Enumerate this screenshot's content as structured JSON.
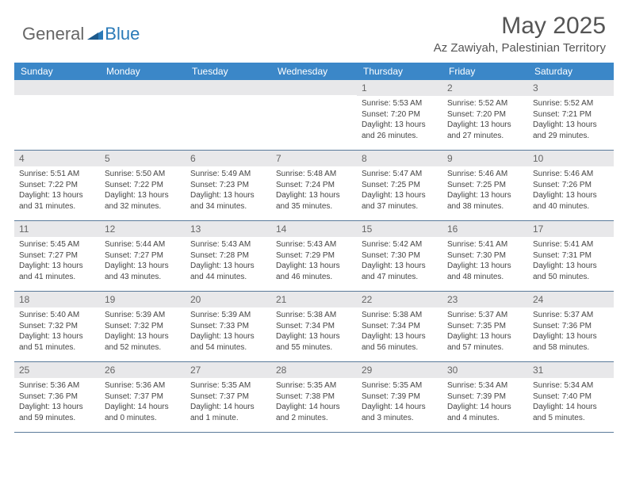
{
  "brand": {
    "general": "General",
    "blue": "Blue"
  },
  "title": "May 2025",
  "location": "Az Zawiyah, Palestinian Territory",
  "colors": {
    "header_bg": "#3b87c8",
    "header_fg": "#ffffff",
    "daynum_bg": "#e8e8ea",
    "border": "#5a7a9a",
    "text": "#444444",
    "brand_gray": "#666666",
    "brand_blue": "#2a7ab8"
  },
  "day_headers": [
    "Sunday",
    "Monday",
    "Tuesday",
    "Wednesday",
    "Thursday",
    "Friday",
    "Saturday"
  ],
  "weeks": [
    [
      {
        "n": "",
        "sr": "",
        "ss": "",
        "dl": ""
      },
      {
        "n": "",
        "sr": "",
        "ss": "",
        "dl": ""
      },
      {
        "n": "",
        "sr": "",
        "ss": "",
        "dl": ""
      },
      {
        "n": "",
        "sr": "",
        "ss": "",
        "dl": ""
      },
      {
        "n": "1",
        "sr": "Sunrise: 5:53 AM",
        "ss": "Sunset: 7:20 PM",
        "dl": "Daylight: 13 hours and 26 minutes."
      },
      {
        "n": "2",
        "sr": "Sunrise: 5:52 AM",
        "ss": "Sunset: 7:20 PM",
        "dl": "Daylight: 13 hours and 27 minutes."
      },
      {
        "n": "3",
        "sr": "Sunrise: 5:52 AM",
        "ss": "Sunset: 7:21 PM",
        "dl": "Daylight: 13 hours and 29 minutes."
      }
    ],
    [
      {
        "n": "4",
        "sr": "Sunrise: 5:51 AM",
        "ss": "Sunset: 7:22 PM",
        "dl": "Daylight: 13 hours and 31 minutes."
      },
      {
        "n": "5",
        "sr": "Sunrise: 5:50 AM",
        "ss": "Sunset: 7:22 PM",
        "dl": "Daylight: 13 hours and 32 minutes."
      },
      {
        "n": "6",
        "sr": "Sunrise: 5:49 AM",
        "ss": "Sunset: 7:23 PM",
        "dl": "Daylight: 13 hours and 34 minutes."
      },
      {
        "n": "7",
        "sr": "Sunrise: 5:48 AM",
        "ss": "Sunset: 7:24 PM",
        "dl": "Daylight: 13 hours and 35 minutes."
      },
      {
        "n": "8",
        "sr": "Sunrise: 5:47 AM",
        "ss": "Sunset: 7:25 PM",
        "dl": "Daylight: 13 hours and 37 minutes."
      },
      {
        "n": "9",
        "sr": "Sunrise: 5:46 AM",
        "ss": "Sunset: 7:25 PM",
        "dl": "Daylight: 13 hours and 38 minutes."
      },
      {
        "n": "10",
        "sr": "Sunrise: 5:46 AM",
        "ss": "Sunset: 7:26 PM",
        "dl": "Daylight: 13 hours and 40 minutes."
      }
    ],
    [
      {
        "n": "11",
        "sr": "Sunrise: 5:45 AM",
        "ss": "Sunset: 7:27 PM",
        "dl": "Daylight: 13 hours and 41 minutes."
      },
      {
        "n": "12",
        "sr": "Sunrise: 5:44 AM",
        "ss": "Sunset: 7:27 PM",
        "dl": "Daylight: 13 hours and 43 minutes."
      },
      {
        "n": "13",
        "sr": "Sunrise: 5:43 AM",
        "ss": "Sunset: 7:28 PM",
        "dl": "Daylight: 13 hours and 44 minutes."
      },
      {
        "n": "14",
        "sr": "Sunrise: 5:43 AM",
        "ss": "Sunset: 7:29 PM",
        "dl": "Daylight: 13 hours and 46 minutes."
      },
      {
        "n": "15",
        "sr": "Sunrise: 5:42 AM",
        "ss": "Sunset: 7:30 PM",
        "dl": "Daylight: 13 hours and 47 minutes."
      },
      {
        "n": "16",
        "sr": "Sunrise: 5:41 AM",
        "ss": "Sunset: 7:30 PM",
        "dl": "Daylight: 13 hours and 48 minutes."
      },
      {
        "n": "17",
        "sr": "Sunrise: 5:41 AM",
        "ss": "Sunset: 7:31 PM",
        "dl": "Daylight: 13 hours and 50 minutes."
      }
    ],
    [
      {
        "n": "18",
        "sr": "Sunrise: 5:40 AM",
        "ss": "Sunset: 7:32 PM",
        "dl": "Daylight: 13 hours and 51 minutes."
      },
      {
        "n": "19",
        "sr": "Sunrise: 5:39 AM",
        "ss": "Sunset: 7:32 PM",
        "dl": "Daylight: 13 hours and 52 minutes."
      },
      {
        "n": "20",
        "sr": "Sunrise: 5:39 AM",
        "ss": "Sunset: 7:33 PM",
        "dl": "Daylight: 13 hours and 54 minutes."
      },
      {
        "n": "21",
        "sr": "Sunrise: 5:38 AM",
        "ss": "Sunset: 7:34 PM",
        "dl": "Daylight: 13 hours and 55 minutes."
      },
      {
        "n": "22",
        "sr": "Sunrise: 5:38 AM",
        "ss": "Sunset: 7:34 PM",
        "dl": "Daylight: 13 hours and 56 minutes."
      },
      {
        "n": "23",
        "sr": "Sunrise: 5:37 AM",
        "ss": "Sunset: 7:35 PM",
        "dl": "Daylight: 13 hours and 57 minutes."
      },
      {
        "n": "24",
        "sr": "Sunrise: 5:37 AM",
        "ss": "Sunset: 7:36 PM",
        "dl": "Daylight: 13 hours and 58 minutes."
      }
    ],
    [
      {
        "n": "25",
        "sr": "Sunrise: 5:36 AM",
        "ss": "Sunset: 7:36 PM",
        "dl": "Daylight: 13 hours and 59 minutes."
      },
      {
        "n": "26",
        "sr": "Sunrise: 5:36 AM",
        "ss": "Sunset: 7:37 PM",
        "dl": "Daylight: 14 hours and 0 minutes."
      },
      {
        "n": "27",
        "sr": "Sunrise: 5:35 AM",
        "ss": "Sunset: 7:37 PM",
        "dl": "Daylight: 14 hours and 1 minute."
      },
      {
        "n": "28",
        "sr": "Sunrise: 5:35 AM",
        "ss": "Sunset: 7:38 PM",
        "dl": "Daylight: 14 hours and 2 minutes."
      },
      {
        "n": "29",
        "sr": "Sunrise: 5:35 AM",
        "ss": "Sunset: 7:39 PM",
        "dl": "Daylight: 14 hours and 3 minutes."
      },
      {
        "n": "30",
        "sr": "Sunrise: 5:34 AM",
        "ss": "Sunset: 7:39 PM",
        "dl": "Daylight: 14 hours and 4 minutes."
      },
      {
        "n": "31",
        "sr": "Sunrise: 5:34 AM",
        "ss": "Sunset: 7:40 PM",
        "dl": "Daylight: 14 hours and 5 minutes."
      }
    ]
  ]
}
